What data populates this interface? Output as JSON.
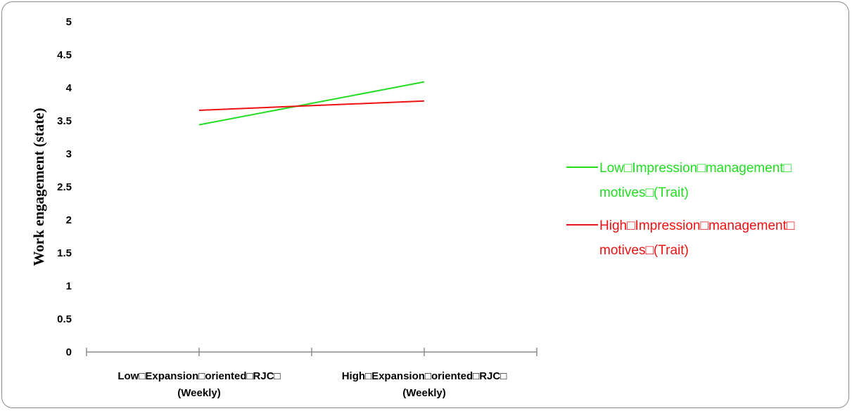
{
  "chart_data": {
    "type": "line",
    "ylabel": "Work engagement (state)",
    "xlabel": "",
    "ylim": [
      0,
      5
    ],
    "yticks": [
      "0",
      "0.5",
      "1",
      "1.5",
      "2",
      "2.5",
      "3",
      "3.5",
      "4",
      "4.5",
      "5"
    ],
    "categories": [
      [
        "Low□Expansion□oriented□RJC□",
        "(Weekly)"
      ],
      [
        "High□Expansion□oriented□RJC□",
        "(Weekly)"
      ]
    ],
    "series": [
      {
        "name": [
          "Low□Impression□management□",
          "motives□(Trait)"
        ],
        "color": "#22dd22",
        "values": [
          3.44,
          4.09
        ]
      },
      {
        "name": [
          "High□Impression□management□",
          "motives□(Trait)"
        ],
        "color": "#ee1111",
        "values": [
          3.66,
          3.8
        ]
      }
    ],
    "grid": false,
    "legend": "right"
  }
}
